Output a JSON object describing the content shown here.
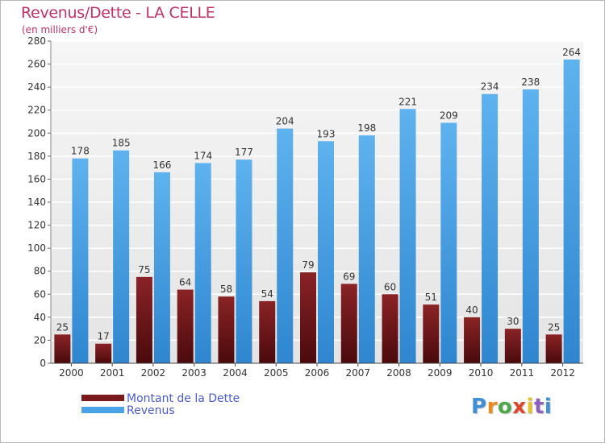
{
  "chart_data": {
    "type": "bar",
    "title": "Revenus/Dette - LA CELLE",
    "subtitle": "(en milliers d'€)",
    "xlabel": "",
    "ylabel": "",
    "ylim": [
      0,
      280
    ],
    "yticks": [
      0,
      20,
      40,
      60,
      80,
      100,
      120,
      140,
      160,
      180,
      200,
      220,
      240,
      260,
      280
    ],
    "grid": true,
    "legend_position": "bottom-left",
    "categories": [
      "2000",
      "2001",
      "2002",
      "2003",
      "2004",
      "2005",
      "2006",
      "2007",
      "2008",
      "2009",
      "2010",
      "2011",
      "2012"
    ],
    "series": [
      {
        "name": "Montant de la Dette",
        "color": "#7a1a1c",
        "values": [
          25,
          17,
          75,
          64,
          58,
          54,
          79,
          69,
          60,
          51,
          40,
          30,
          25
        ]
      },
      {
        "name": "Revenus",
        "color": "#4aa3e6",
        "values": [
          178,
          185,
          166,
          174,
          177,
          204,
          193,
          198,
          221,
          209,
          234,
          238,
          264
        ]
      }
    ]
  },
  "logo": {
    "text": "Proxiti",
    "letter_colors": [
      "#3f8fd6",
      "#e98a1e",
      "#4ea84a",
      "#e0452c",
      "#e6c12a",
      "#8f5fc0",
      "#3f8fd6"
    ]
  }
}
